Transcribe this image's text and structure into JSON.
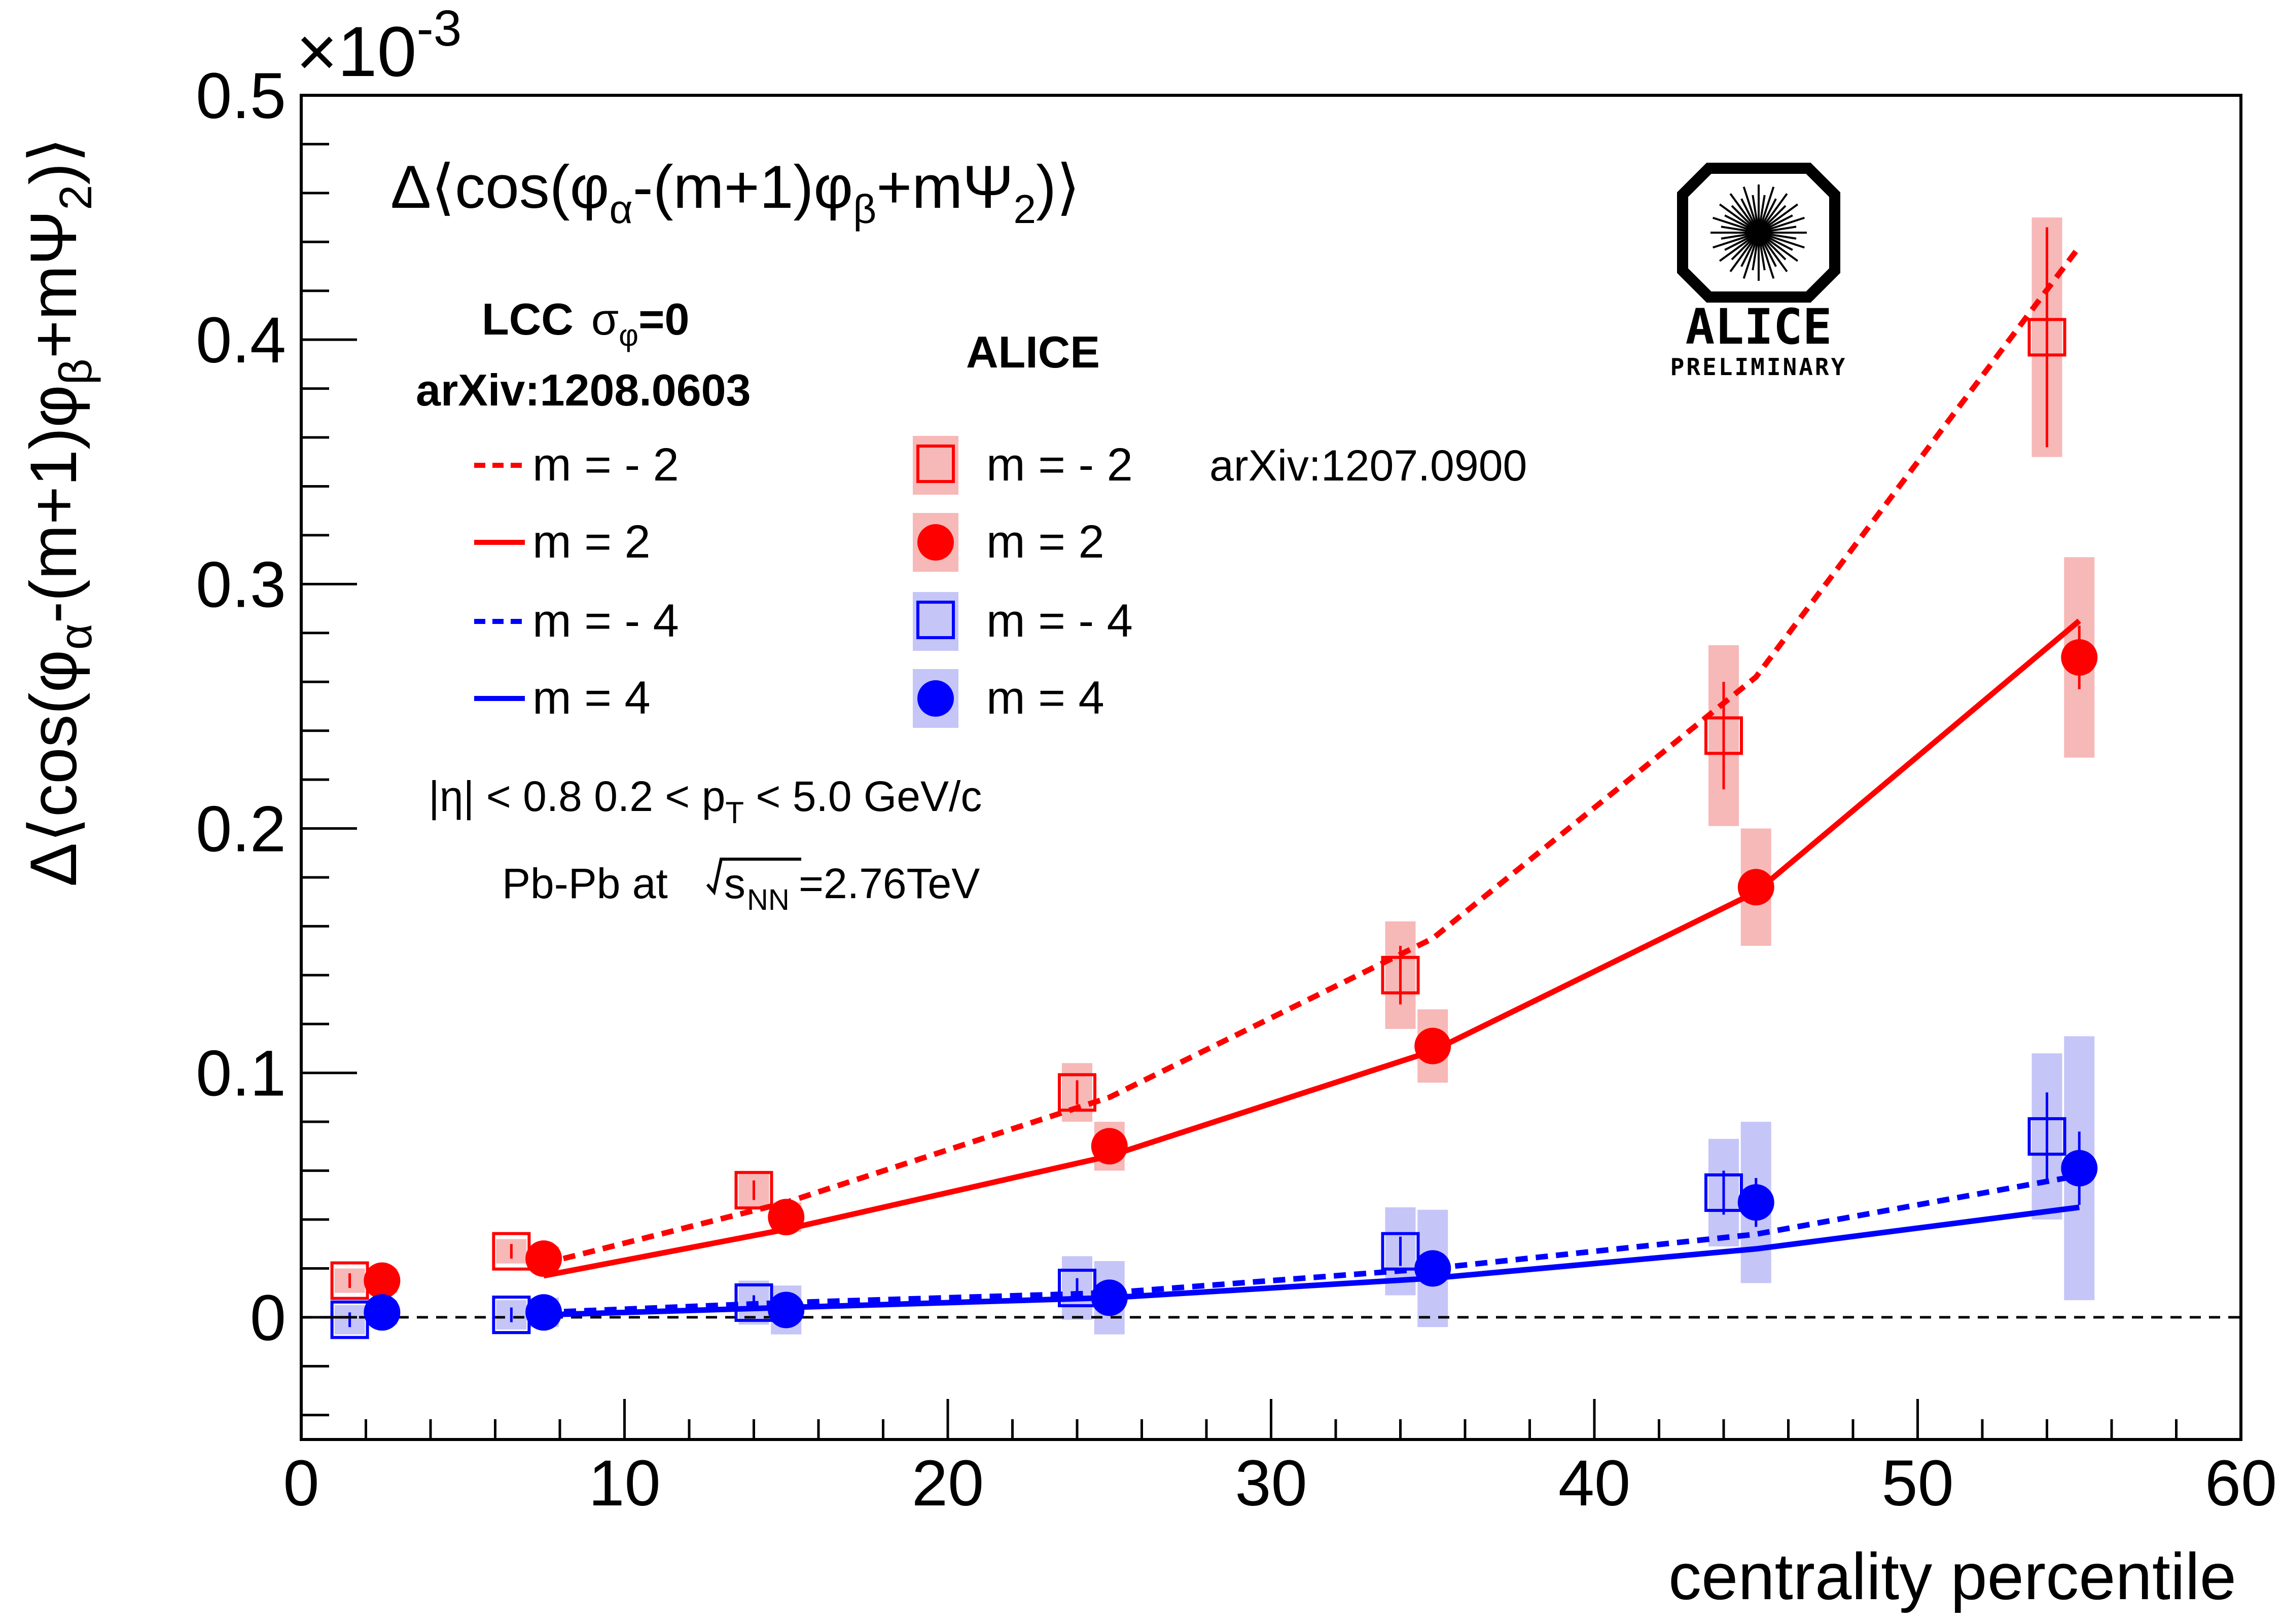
{
  "chart_data": {
    "type": "scatter",
    "title": "Δ⟨cos(φα-(m+1)φβ+mΨ2)⟩",
    "title_parts": {
      "lead": "Δ⟨cos(φ",
      "sub_alpha": "α",
      "mid1": "-(m+1)φ",
      "sub_beta": "β",
      "mid2": "+mΨ",
      "sub_2": "2",
      "tail": ")⟩"
    },
    "xlabel": "centrality percentile",
    "ylabel": "Δ⟨cos(φα-(m+1)φβ+mΨ2)⟩",
    "ylabel_parts": {
      "lead": "Δ⟨cos(φ",
      "sub_alpha": "α",
      "mid1": "-(m+1)φ",
      "sub_beta": "β",
      "mid2": "+mΨ",
      "sub_2": "2",
      "tail": ")⟩"
    },
    "y_exponent_label": "×10",
    "y_exponent_power": "-3",
    "xlim": [
      0,
      60
    ],
    "ylim": [
      -0.05,
      0.5
    ],
    "x_ticks": [
      "0",
      "10",
      "20",
      "30",
      "40",
      "50",
      "60"
    ],
    "y_ticks": [
      "0",
      "0.1",
      "0.2",
      "0.3",
      "0.4",
      "0.5"
    ],
    "reference_line_y": 0,
    "model_header": "LCC",
    "model_sigma": "σ",
    "model_sigma_sub": "φ",
    "model_sigma_val": "=0",
    "model_ref": "arXiv:1208.0603",
    "data_header": "ALICE",
    "data_ref": "arXiv:1207.0900",
    "kinematics": {
      "eta": "|η| < 0.8   0.2 < p",
      "pt_sub": "T",
      "pt_range": " < 5.0 GeV/c"
    },
    "system": {
      "lead": "Pb-Pb at ",
      "s": "s",
      "s_sub": "NN",
      "energy": "=2.76TeV"
    },
    "logo": {
      "name": "ALICE",
      "tag": "PRELIMINARY"
    },
    "colors": {
      "red": "#ff0000",
      "blue": "#0000ff",
      "red_band": "#f7b8b8",
      "blue_band": "#c5c5f7"
    },
    "model_series": [
      {
        "name": "m = - 2",
        "color": "#ff0000",
        "dash": true,
        "x": [
          7.5,
          15,
          25,
          35,
          45,
          55
        ],
        "y": [
          0.022,
          0.047,
          0.09,
          0.155,
          0.262,
          0.438
        ]
      },
      {
        "name": "m = 2",
        "color": "#ff0000",
        "dash": false,
        "x": [
          7.5,
          15,
          25,
          35,
          45,
          55
        ],
        "y": [
          0.017,
          0.036,
          0.066,
          0.109,
          0.174,
          0.285
        ]
      },
      {
        "name": "m = - 4",
        "color": "#0000ff",
        "dash": true,
        "x": [
          7.5,
          15,
          25,
          35,
          45,
          55
        ],
        "y": [
          0.002,
          0.006,
          0.01,
          0.02,
          0.034,
          0.058
        ]
      },
      {
        "name": "m = 4",
        "color": "#0000ff",
        "dash": false,
        "x": [
          7.5,
          15,
          25,
          35,
          45,
          55
        ],
        "y": [
          0.001,
          0.004,
          0.008,
          0.016,
          0.028,
          0.045
        ]
      }
    ],
    "data_series": [
      {
        "name": "m = - 2",
        "color": "#ff0000",
        "band": "#f7b8b8",
        "marker": "open-square",
        "x": [
          1.5,
          6.5,
          14,
          24,
          34,
          44,
          54
        ],
        "y": [
          0.015,
          0.027,
          0.052,
          0.092,
          0.14,
          0.238,
          0.401
        ],
        "stat": [
          0.003,
          0.003,
          0.004,
          0.005,
          0.012,
          0.022,
          0.045
        ],
        "sys": [
          0.005,
          0.005,
          0.007,
          0.012,
          0.022,
          0.037,
          0.049
        ]
      },
      {
        "name": "m = 2",
        "color": "#ff0000",
        "band": "#f7b8b8",
        "marker": "filled-circle",
        "x": [
          2.5,
          7.5,
          15,
          25,
          35,
          45,
          55
        ],
        "y": [
          0.015,
          0.024,
          0.041,
          0.07,
          0.111,
          0.176,
          0.27
        ],
        "stat": [
          0.003,
          0.003,
          0.003,
          0.004,
          0.005,
          0.007,
          0.013
        ],
        "sys": [
          0.005,
          0.005,
          0.006,
          0.01,
          0.015,
          0.024,
          0.041
        ]
      },
      {
        "name": "m = - 4",
        "color": "#0000ff",
        "band": "#c5c5f7",
        "marker": "open-square",
        "x": [
          1.5,
          6.5,
          14,
          24,
          34,
          44,
          54
        ],
        "y": [
          -0.001,
          0.001,
          0.006,
          0.012,
          0.027,
          0.051,
          0.074
        ],
        "stat": [
          0.003,
          0.003,
          0.003,
          0.004,
          0.006,
          0.009,
          0.018
        ],
        "sys": [
          0.006,
          0.006,
          0.009,
          0.013,
          0.018,
          0.022,
          0.034
        ]
      },
      {
        "name": "m = 4",
        "color": "#0000ff",
        "band": "#c5c5f7",
        "marker": "filled-circle",
        "x": [
          2.5,
          7.5,
          15,
          25,
          35,
          45,
          55
        ],
        "y": [
          0.002,
          0.002,
          0.003,
          0.008,
          0.02,
          0.047,
          0.061
        ],
        "stat": [
          0.003,
          0.003,
          0.003,
          0.004,
          0.006,
          0.01,
          0.015
        ],
        "sys": [
          0.005,
          0.006,
          0.01,
          0.015,
          0.024,
          0.033,
          0.054
        ]
      }
    ]
  }
}
